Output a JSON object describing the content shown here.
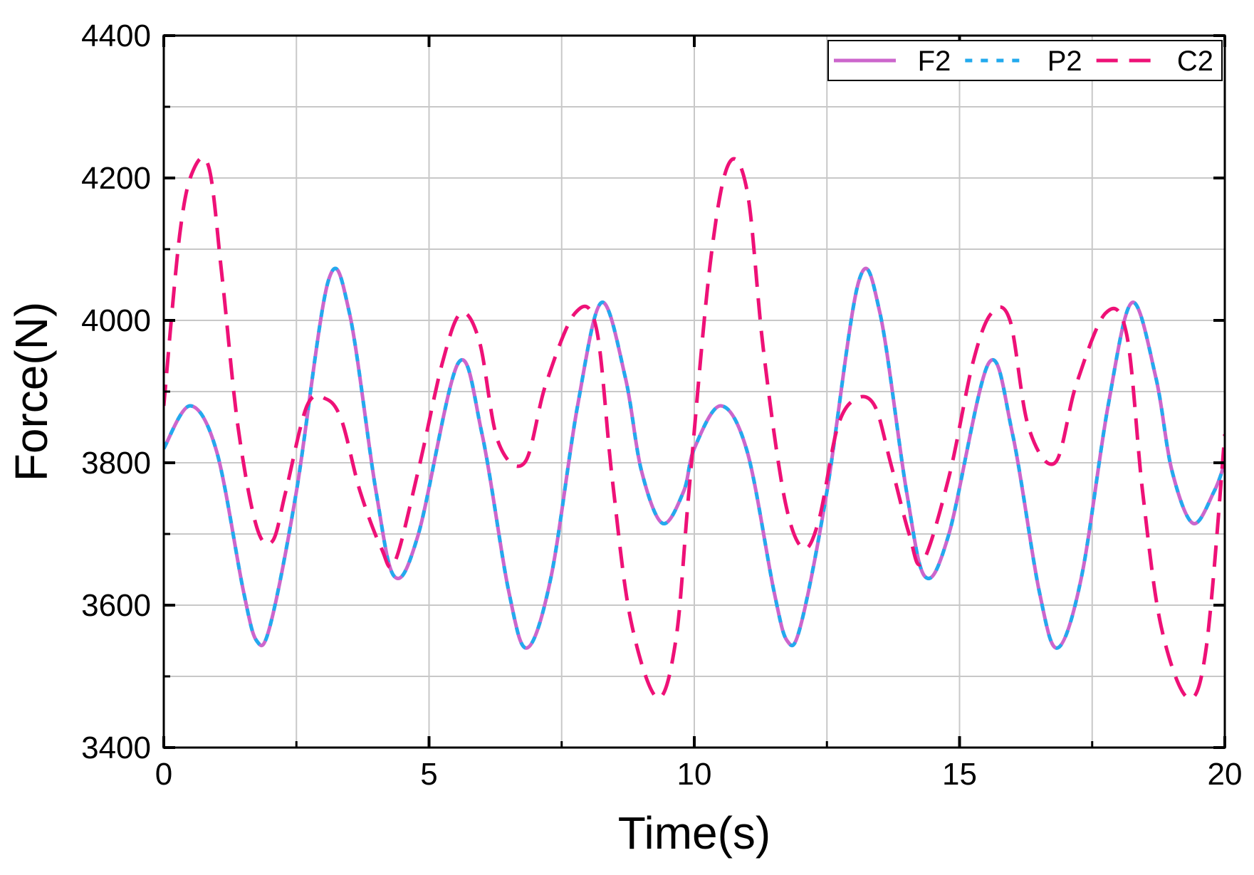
{
  "chart_data": {
    "type": "line",
    "xlabel": "Time(s)",
    "ylabel": "Force(N)",
    "xlim": [
      0,
      20
    ],
    "ylim": [
      3400,
      4400
    ],
    "xticks": [
      0,
      5,
      10,
      15,
      20
    ],
    "yticks": [
      3400,
      3600,
      3800,
      4000,
      4200,
      4400
    ],
    "grid": true,
    "legend_position": "top-right",
    "series": [
      {
        "name": "F2",
        "color": "#cc66cc",
        "style": "solid",
        "x": [
          0,
          0.5,
          1.0,
          1.5,
          1.75,
          2.0,
          2.5,
          3.1,
          3.5,
          4.0,
          4.35,
          4.8,
          5.55,
          6.0,
          6.5,
          6.85,
          7.3,
          7.8,
          8.25,
          8.7,
          9.0,
          9.4,
          9.8,
          10.0,
          10.5,
          11.0,
          11.5,
          11.75,
          12.0,
          12.5,
          13.1,
          13.5,
          14.0,
          14.35,
          14.8,
          15.55,
          16.0,
          16.5,
          16.85,
          17.3,
          17.8,
          18.25,
          18.7,
          19.0,
          19.4,
          19.8,
          20.0
        ],
        "y": [
          3820,
          3880,
          3815,
          3620,
          3550,
          3570,
          3760,
          4055,
          4010,
          3760,
          3640,
          3700,
          3940,
          3840,
          3620,
          3540,
          3640,
          3880,
          4025,
          3920,
          3790,
          3715,
          3760,
          3820,
          3880,
          3815,
          3620,
          3550,
          3570,
          3760,
          4055,
          4010,
          3760,
          3640,
          3700,
          3940,
          3840,
          3620,
          3540,
          3640,
          3880,
          4025,
          3920,
          3790,
          3715,
          3760,
          3800
        ]
      },
      {
        "name": "P2",
        "color": "#22aaee",
        "style": "dotted",
        "x": [
          0,
          0.5,
          1.0,
          1.5,
          1.75,
          2.0,
          2.5,
          3.1,
          3.5,
          4.0,
          4.35,
          4.8,
          5.55,
          6.0,
          6.5,
          6.85,
          7.3,
          7.8,
          8.25,
          8.7,
          9.0,
          9.4,
          9.8,
          10.0,
          10.5,
          11.0,
          11.5,
          11.75,
          12.0,
          12.5,
          13.1,
          13.5,
          14.0,
          14.35,
          14.8,
          15.55,
          16.0,
          16.5,
          16.85,
          17.3,
          17.8,
          18.25,
          18.7,
          19.0,
          19.4,
          19.8,
          20.0
        ],
        "y": [
          3820,
          3880,
          3815,
          3620,
          3550,
          3570,
          3760,
          4055,
          4010,
          3760,
          3640,
          3700,
          3940,
          3840,
          3620,
          3540,
          3640,
          3880,
          4025,
          3920,
          3790,
          3715,
          3760,
          3820,
          3880,
          3815,
          3620,
          3550,
          3570,
          3760,
          4055,
          4010,
          3760,
          3640,
          3700,
          3940,
          3840,
          3620,
          3540,
          3640,
          3880,
          4025,
          3920,
          3790,
          3715,
          3760,
          3800
        ]
      },
      {
        "name": "C2",
        "color": "#ee1177",
        "style": "dashed",
        "x": [
          0,
          0.3,
          0.55,
          0.85,
          1.1,
          1.4,
          1.75,
          2.05,
          2.3,
          2.7,
          3.05,
          3.35,
          3.7,
          4.1,
          4.35,
          4.8,
          5.25,
          5.6,
          5.95,
          6.3,
          6.8,
          7.2,
          7.75,
          8.15,
          8.45,
          8.8,
          9.3,
          9.65,
          9.9,
          10.3,
          10.65,
          11.0,
          11.3,
          11.7,
          12.05,
          12.35,
          12.7,
          13.05,
          13.4,
          13.7,
          14.05,
          14.3,
          14.8,
          15.25,
          15.6,
          15.95,
          16.3,
          16.8,
          17.2,
          17.75,
          18.15,
          18.45,
          18.8,
          19.3,
          19.65,
          20.0
        ],
        "y": [
          3880,
          4120,
          4210,
          4215,
          4060,
          3850,
          3710,
          3690,
          3760,
          3880,
          3890,
          3860,
          3760,
          3680,
          3660,
          3790,
          3940,
          4010,
          3970,
          3830,
          3800,
          3910,
          4010,
          3990,
          3780,
          3580,
          3470,
          3550,
          3760,
          4080,
          4220,
          4180,
          3960,
          3750,
          3680,
          3720,
          3850,
          3890,
          3880,
          3800,
          3700,
          3660,
          3780,
          3940,
          4010,
          4000,
          3850,
          3800,
          3910,
          4010,
          3980,
          3760,
          3570,
          3470,
          3540,
          3840
        ]
      }
    ]
  }
}
